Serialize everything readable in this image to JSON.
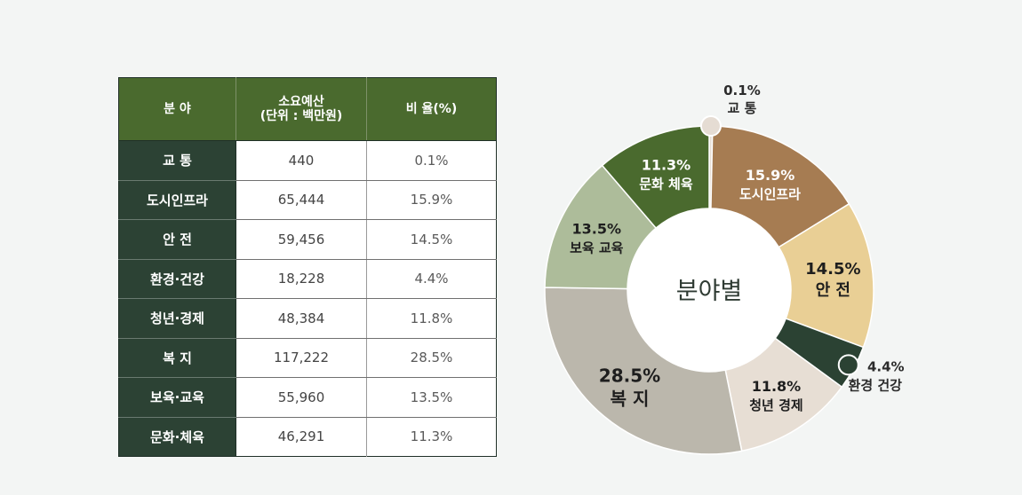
{
  "table": {
    "headers": [
      "분 야",
      "소요예산",
      "(단위 : 백만원)",
      "비 율(%)"
    ],
    "rows": [
      {
        "category": "교 통",
        "budget": "440",
        "ratio": "0.1%"
      },
      {
        "category": "도시인프라",
        "budget": "65,444",
        "ratio": "15.9%"
      },
      {
        "category": "안  전",
        "budget": "59,456",
        "ratio": "14.5%"
      },
      {
        "category": "환경·건강",
        "budget": "18,228",
        "ratio": "4.4%"
      },
      {
        "category": "청년·경제",
        "budget": "48,384",
        "ratio": "11.8%"
      },
      {
        "category": "복  지",
        "budget": "117,222",
        "ratio": "28.5%"
      },
      {
        "category": "보육·교육",
        "budget": "55,960",
        "ratio": "13.5%"
      },
      {
        "category": "문화·체육",
        "budget": "46,291",
        "ratio": "11.3%"
      }
    ]
  },
  "chart_data": {
    "type": "pie",
    "center_label": "분야별",
    "slices": [
      {
        "label": "교 통",
        "value": 0.1,
        "value_label": "0.1%",
        "color": "#e5dcd3"
      },
      {
        "label": "도시인프라",
        "value": 15.9,
        "value_label": "15.9%",
        "color": "#a67c52"
      },
      {
        "label": "안 전",
        "value": 14.5,
        "value_label": "14.5%",
        "color": "#e9cf95"
      },
      {
        "label": "환경 건강",
        "value": 4.4,
        "value_label": "4.4%",
        "color": "#2b4233"
      },
      {
        "label": "청년 경제",
        "value": 11.8,
        "value_label": "11.8%",
        "color": "#e7ded4"
      },
      {
        "label": "복 지",
        "value": 28.5,
        "value_label": "28.5%",
        "color": "#bbb7ac"
      },
      {
        "label": "보육 교육",
        "value": 13.5,
        "value_label": "13.5%",
        "color": "#adbc9a"
      },
      {
        "label": "문화 체육",
        "value": 11.3,
        "value_label": "11.3%",
        "color": "#4a6a2e"
      }
    ]
  }
}
